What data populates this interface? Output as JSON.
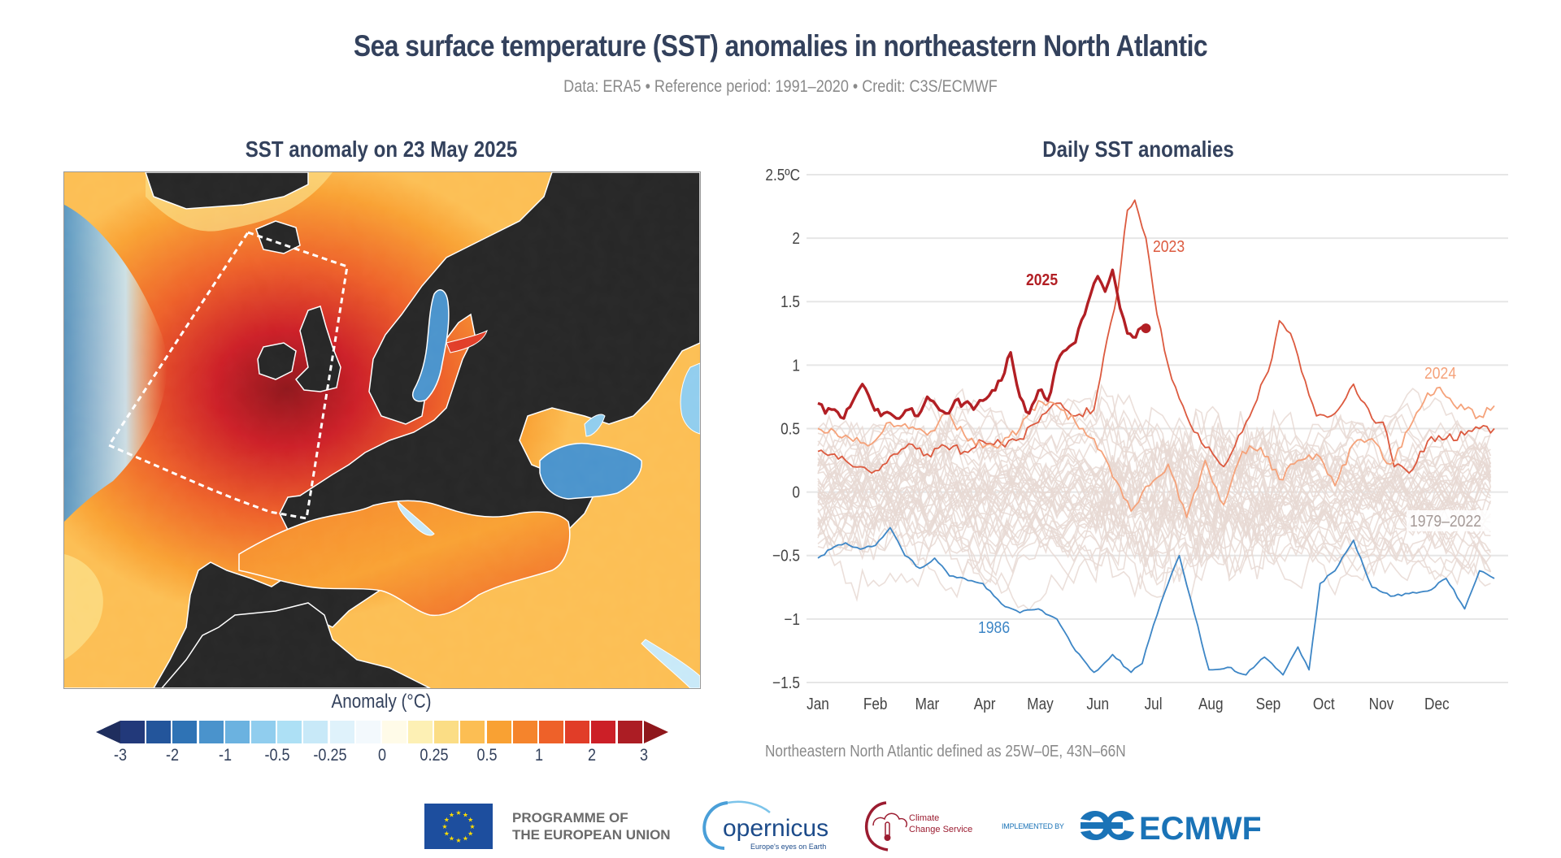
{
  "header": {
    "title": "Sea surface temperature (SST) anomalies in northeastern North Atlantic",
    "subtitle": "Data: ERA5 • Reference period: 1991–2020 • Credit: C3S/ECMWF"
  },
  "map_panel": {
    "title": "SST anomaly on 23 May 2025",
    "colorbar": {
      "title": "Anomaly (°C)",
      "tick_labels": [
        "-3",
        "-2",
        "-1",
        "-0.5",
        "-0.25",
        "0",
        "0.25",
        "0.5",
        "1",
        "2",
        "3"
      ],
      "colors": [
        "#22397a",
        "#23559b",
        "#2f73b5",
        "#4a93cc",
        "#6bb2e0",
        "#90cdee",
        "#ade0f5",
        "#c8e9f8",
        "#dff2fb",
        "#f3f9fd",
        "#fffbe8",
        "#fdf0b4",
        "#fbdd85",
        "#fcbe53",
        "#f9a133",
        "#f5842c",
        "#ee6129",
        "#e13d28",
        "#cc1f27",
        "#ac1d24"
      ],
      "under_color": "#1f2e5e",
      "over_color": "#8f171c"
    },
    "land_color": "#262626",
    "region_box_label": "Northeastern North Atlantic (25W–0E, 43N–66N)"
  },
  "chart_data": {
    "type": "line",
    "title": "Daily SST anomalies",
    "xlabel": "",
    "ylabel": "°C",
    "ylim": [
      -1.5,
      2.5
    ],
    "y_ticks": [
      -1.5,
      -1,
      -0.5,
      0,
      0.5,
      1,
      1.5,
      2,
      2.5
    ],
    "y_tick_labels": [
      "−1.5",
      "−1",
      "−0.5",
      "0",
      "0.5",
      "1",
      "1.5",
      "2",
      "2.5ºC"
    ],
    "x_tick_labels": [
      "Jan",
      "Feb",
      "Mar",
      "Apr",
      "May",
      "Jun",
      "Jul",
      "Aug",
      "Sep",
      "Oct",
      "Nov",
      "Dec"
    ],
    "x_unit": "day of year",
    "xlim": [
      1,
      366
    ],
    "grid": true,
    "series": [
      {
        "name": "1979–2022",
        "color": "#e8d9d4",
        "label": "1979–2022",
        "note": "44 individual yearly lines, spread roughly between -0.9 and 1.3"
      },
      {
        "name": "1986",
        "color": "#3d86c6",
        "label": "1986",
        "x": [
          1,
          8,
          16,
          24,
          32,
          40,
          48,
          56,
          64,
          72,
          80,
          90,
          100,
          110,
          120,
          130,
          140,
          150,
          160,
          170,
          176,
          182,
          190,
          196,
          204,
          212,
          222,
          232,
          242,
          252,
          260,
          266,
          272,
          280,
          290,
          300,
          310,
          320,
          330,
          340,
          350,
          358,
          366
        ],
        "y": [
          -0.52,
          -0.45,
          -0.4,
          -0.45,
          -0.42,
          -0.28,
          -0.5,
          -0.6,
          -0.52,
          -0.66,
          -0.68,
          -0.72,
          -0.88,
          -0.95,
          -0.92,
          -1.0,
          -1.25,
          -1.42,
          -1.28,
          -1.42,
          -1.35,
          -1.05,
          -0.72,
          -0.5,
          -0.95,
          -1.4,
          -1.38,
          -1.44,
          -1.3,
          -1.44,
          -1.22,
          -1.4,
          -0.72,
          -0.62,
          -0.38,
          -0.75,
          -0.82,
          -0.8,
          -0.78,
          -0.68,
          -0.92,
          -0.62,
          -0.68
        ]
      },
      {
        "name": "2023",
        "color": "#dc5a3f",
        "label": "2023",
        "x": [
          1,
          10,
          20,
          30,
          40,
          50,
          60,
          70,
          80,
          90,
          100,
          110,
          120,
          130,
          140,
          150,
          157,
          163,
          168,
          172,
          178,
          184,
          190,
          200,
          210,
          220,
          232,
          244,
          250,
          256,
          262,
          270,
          280,
          290,
          300,
          306,
          312,
          320,
          330,
          340,
          350,
          358,
          366
        ],
        "y": [
          0.32,
          0.3,
          0.2,
          0.15,
          0.28,
          0.38,
          0.3,
          0.36,
          0.32,
          0.4,
          0.38,
          0.42,
          0.55,
          0.7,
          0.6,
          0.65,
          1.2,
          1.6,
          2.22,
          2.3,
          2.0,
          1.4,
          1.0,
          0.6,
          0.35,
          0.2,
          0.55,
          0.95,
          1.35,
          1.25,
          0.95,
          0.6,
          0.62,
          0.85,
          0.58,
          0.55,
          0.2,
          0.15,
          0.4,
          0.42,
          0.45,
          0.5,
          0.5
        ]
      },
      {
        "name": "2024",
        "color": "#f5a27a",
        "label": "2024",
        "x": [
          1,
          10,
          20,
          30,
          40,
          50,
          60,
          70,
          80,
          90,
          100,
          110,
          120,
          130,
          140,
          150,
          160,
          170,
          180,
          190,
          200,
          210,
          220,
          230,
          240,
          250,
          260,
          270,
          280,
          290,
          300,
          310,
          320,
          330,
          335,
          340,
          350,
          358,
          366
        ],
        "y": [
          0.5,
          0.48,
          0.4,
          0.38,
          0.55,
          0.5,
          0.45,
          0.62,
          0.45,
          0.35,
          0.38,
          0.5,
          0.72,
          0.68,
          0.55,
          0.42,
          0.12,
          -0.15,
          0.05,
          0.22,
          -0.2,
          0.25,
          -0.1,
          0.32,
          0.35,
          0.1,
          0.25,
          0.3,
          0.05,
          0.38,
          0.42,
          0.22,
          0.5,
          0.78,
          0.82,
          0.75,
          0.65,
          0.6,
          0.68
        ]
      },
      {
        "name": "2025",
        "color": "#b21f24",
        "label": "2025",
        "x": [
          1,
          5,
          10,
          15,
          20,
          25,
          30,
          35,
          40,
          45,
          50,
          55,
          60,
          65,
          70,
          75,
          80,
          85,
          90,
          95,
          100,
          105,
          110,
          115,
          120,
          125,
          130,
          135,
          140,
          145,
          148,
          152,
          156,
          160,
          164,
          168,
          171,
          174,
          178
        ],
        "y": [
          0.7,
          0.62,
          0.65,
          0.58,
          0.72,
          0.85,
          0.7,
          0.6,
          0.62,
          0.58,
          0.65,
          0.6,
          0.75,
          0.68,
          0.62,
          0.72,
          0.7,
          0.65,
          0.72,
          0.8,
          0.88,
          1.1,
          0.75,
          0.62,
          0.8,
          0.72,
          1.02,
          1.12,
          1.18,
          1.4,
          1.55,
          1.7,
          1.58,
          1.75,
          1.45,
          1.25,
          1.22,
          1.28,
          1.29
        ]
      }
    ],
    "annotations": [
      {
        "text": "2025",
        "series": "2025"
      },
      {
        "text": "2023",
        "series": "2023"
      },
      {
        "text": "2024",
        "series": "2024"
      },
      {
        "text": "1979–2022",
        "series": "1979–2022"
      },
      {
        "text": "1986",
        "series": "1986"
      }
    ],
    "last_point_marker": {
      "series": "2025",
      "x": 178,
      "y": 1.29
    }
  },
  "footnote": "Northeastern North Atlantic defined as 25W–0E, 43N–66N",
  "logos": {
    "eu_line1": "PROGRAMME OF",
    "eu_line2": "THE EUROPEAN UNION",
    "copernicus_name": "opernicus",
    "copernicus_tagline": "Europe's eyes on Earth",
    "ccs_line1": "Climate",
    "ccs_line2": "Change Service",
    "implemented_by": "IMPLEMENTED BY",
    "ecmwf": "ECMWF"
  }
}
